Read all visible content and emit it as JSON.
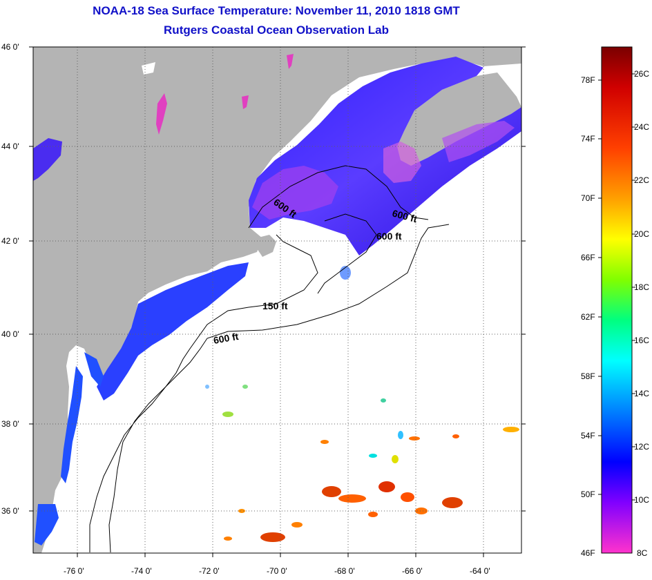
{
  "title": {
    "line1": "NOAA-18 Sea Surface Temperature:  November 11, 2010 1818 GMT",
    "line2": "Rutgers Coastal Ocean Observation Lab"
  },
  "map": {
    "lat_labels": [
      "46 0'",
      "44 0'",
      "42 0'",
      "40 0'",
      "38 0'",
      "36 0'"
    ],
    "lon_labels": [
      "-76 0'",
      "-74 0'",
      "-72 0'",
      "-70 0'",
      "-68 0'",
      "-66 0'",
      "-64 0'"
    ],
    "contour_labels": [
      "600 ft",
      "600 ft",
      "600 ft",
      "150 ft",
      "600 ft"
    ],
    "land_color": "#b4b4b4",
    "water_color": "#ffffff"
  },
  "colorbar": {
    "fahrenheit_labels": [
      "78F",
      "74F",
      "70F",
      "66F",
      "62F",
      "58F",
      "54F",
      "50F",
      "46F"
    ],
    "celsius_labels": [
      "26C",
      "24C",
      "22C",
      "20C",
      "18C",
      "16C",
      "14C",
      "12C",
      "10C",
      "8C"
    ],
    "colors": [
      "#8b0000",
      "#ff0000",
      "#ff8000",
      "#ffff00",
      "#00ff00",
      "#00ffff",
      "#0080ff",
      "#0000ff",
      "#8000ff",
      "#ff33cc"
    ]
  }
}
